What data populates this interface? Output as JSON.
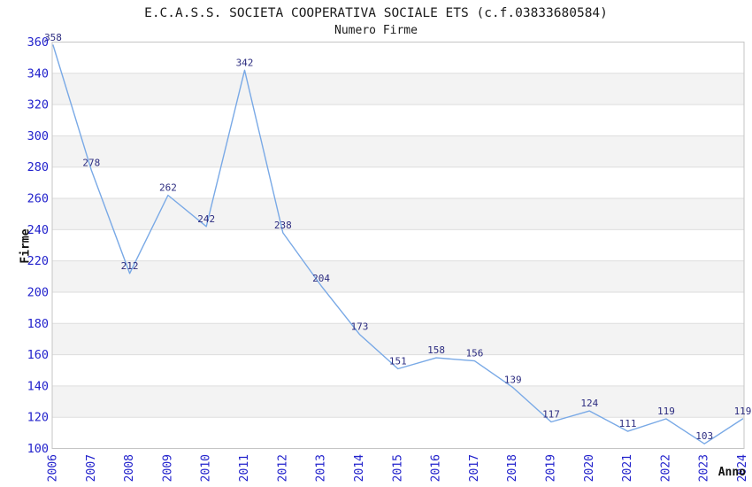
{
  "chart_data": {
    "type": "line",
    "title": "E.C.A.S.S. SOCIETA COOPERATIVA SOCIALE ETS (c.f.03833680584)",
    "subtitle": "Numero Firme",
    "xlabel": "Anno",
    "ylabel": "Firme",
    "categories": [
      "2006",
      "2007",
      "2008",
      "2009",
      "2010",
      "2011",
      "2012",
      "2013",
      "2014",
      "2015",
      "2016",
      "2017",
      "2018",
      "2019",
      "2020",
      "2021",
      "2022",
      "2023",
      "2024"
    ],
    "series": [
      {
        "name": "Numero Firme",
        "values": [
          358,
          278,
          212,
          262,
          242,
          342,
          238,
          204,
          173,
          151,
          158,
          156,
          139,
          117,
          124,
          111,
          119,
          103,
          119
        ]
      }
    ],
    "ylim": [
      100,
      360
    ],
    "ytick_step": 20,
    "grid": "horizontal",
    "legend": "none",
    "point_labels": true,
    "colors": {
      "line": "#79a9e6",
      "point_label": "#2c2c80",
      "tick_label": "#2222cc",
      "band": "#f3f3f3",
      "gridline": "#dedede",
      "border": "#c5c5c5",
      "title": "#1a1a1a",
      "background": "#ffffff"
    }
  }
}
